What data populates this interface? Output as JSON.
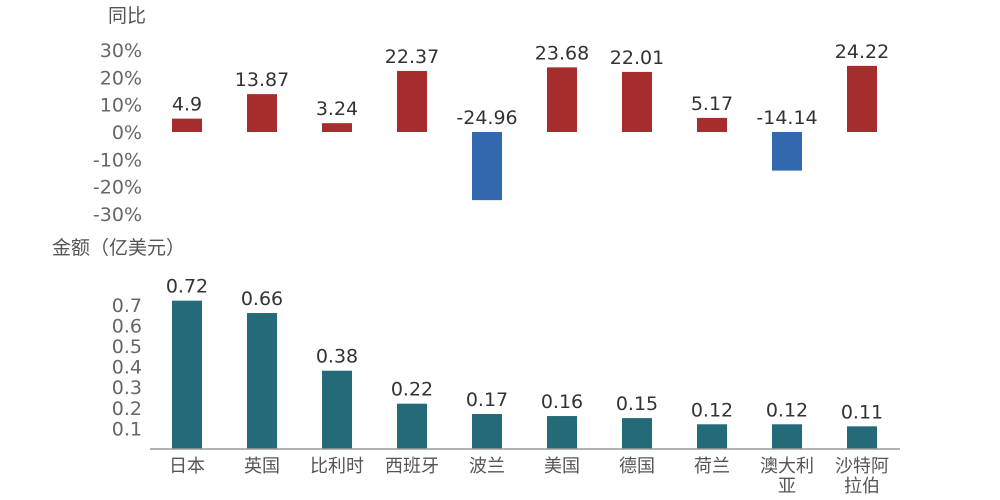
{
  "chart_data": [
    {
      "type": "bar",
      "title": "",
      "ylabel": "同比",
      "ylim": [
        -30,
        30
      ],
      "yticks": [
        "30%",
        "20%",
        "10%",
        "0%",
        "-10%",
        "-20%",
        "-30%"
      ],
      "categories": [
        "日本",
        "英国",
        "比利时",
        "西班牙",
        "波兰",
        "美国",
        "德国",
        "荷兰",
        "澳大利亚",
        "沙特阿拉伯"
      ],
      "series": [
        {
          "values": [
            4.9,
            13.87,
            3.24,
            22.37,
            -24.96,
            23.68,
            22.01,
            5.17,
            -14.14,
            24.22
          ]
        }
      ],
      "data_labels": [
        "4.9",
        "13.87",
        "3.24",
        "22.37",
        "-24.96",
        "23.68",
        "22.01",
        "5.17",
        "-14.14",
        "24.22"
      ],
      "colors": {
        "positive": "#a52d2d",
        "negative": "#3168ae"
      },
      "grid": false
    },
    {
      "type": "bar",
      "title": "",
      "ylabel": "金额（亿美元）",
      "ylim": [
        0,
        0.72
      ],
      "yticks": [
        "0.7",
        "0.6",
        "0.5",
        "0.4",
        "0.3",
        "0.2",
        "0.1"
      ],
      "categories": [
        "日本",
        "英国",
        "比利时",
        "西班牙",
        "波兰",
        "美国",
        "德国",
        "荷兰",
        "澳大利亚",
        "沙特阿拉伯"
      ],
      "category_labels": [
        [
          "日本"
        ],
        [
          "英国"
        ],
        [
          "比利时"
        ],
        [
          "西班牙"
        ],
        [
          "波兰"
        ],
        [
          "美国"
        ],
        [
          "德国"
        ],
        [
          "荷兰"
        ],
        [
          "澳大利",
          "亚"
        ],
        [
          "沙特阿",
          "拉伯"
        ]
      ],
      "series": [
        {
          "values": [
            0.72,
            0.66,
            0.38,
            0.22,
            0.17,
            0.16,
            0.15,
            0.12,
            0.12,
            0.11
          ]
        }
      ],
      "data_labels": [
        "0.72",
        "0.66",
        "0.38",
        "0.22",
        "0.17",
        "0.16",
        "0.15",
        "0.12",
        "0.12",
        "0.11"
      ],
      "colors": {
        "bar": "#256a78",
        "axis": "#999999"
      },
      "grid": false
    }
  ]
}
